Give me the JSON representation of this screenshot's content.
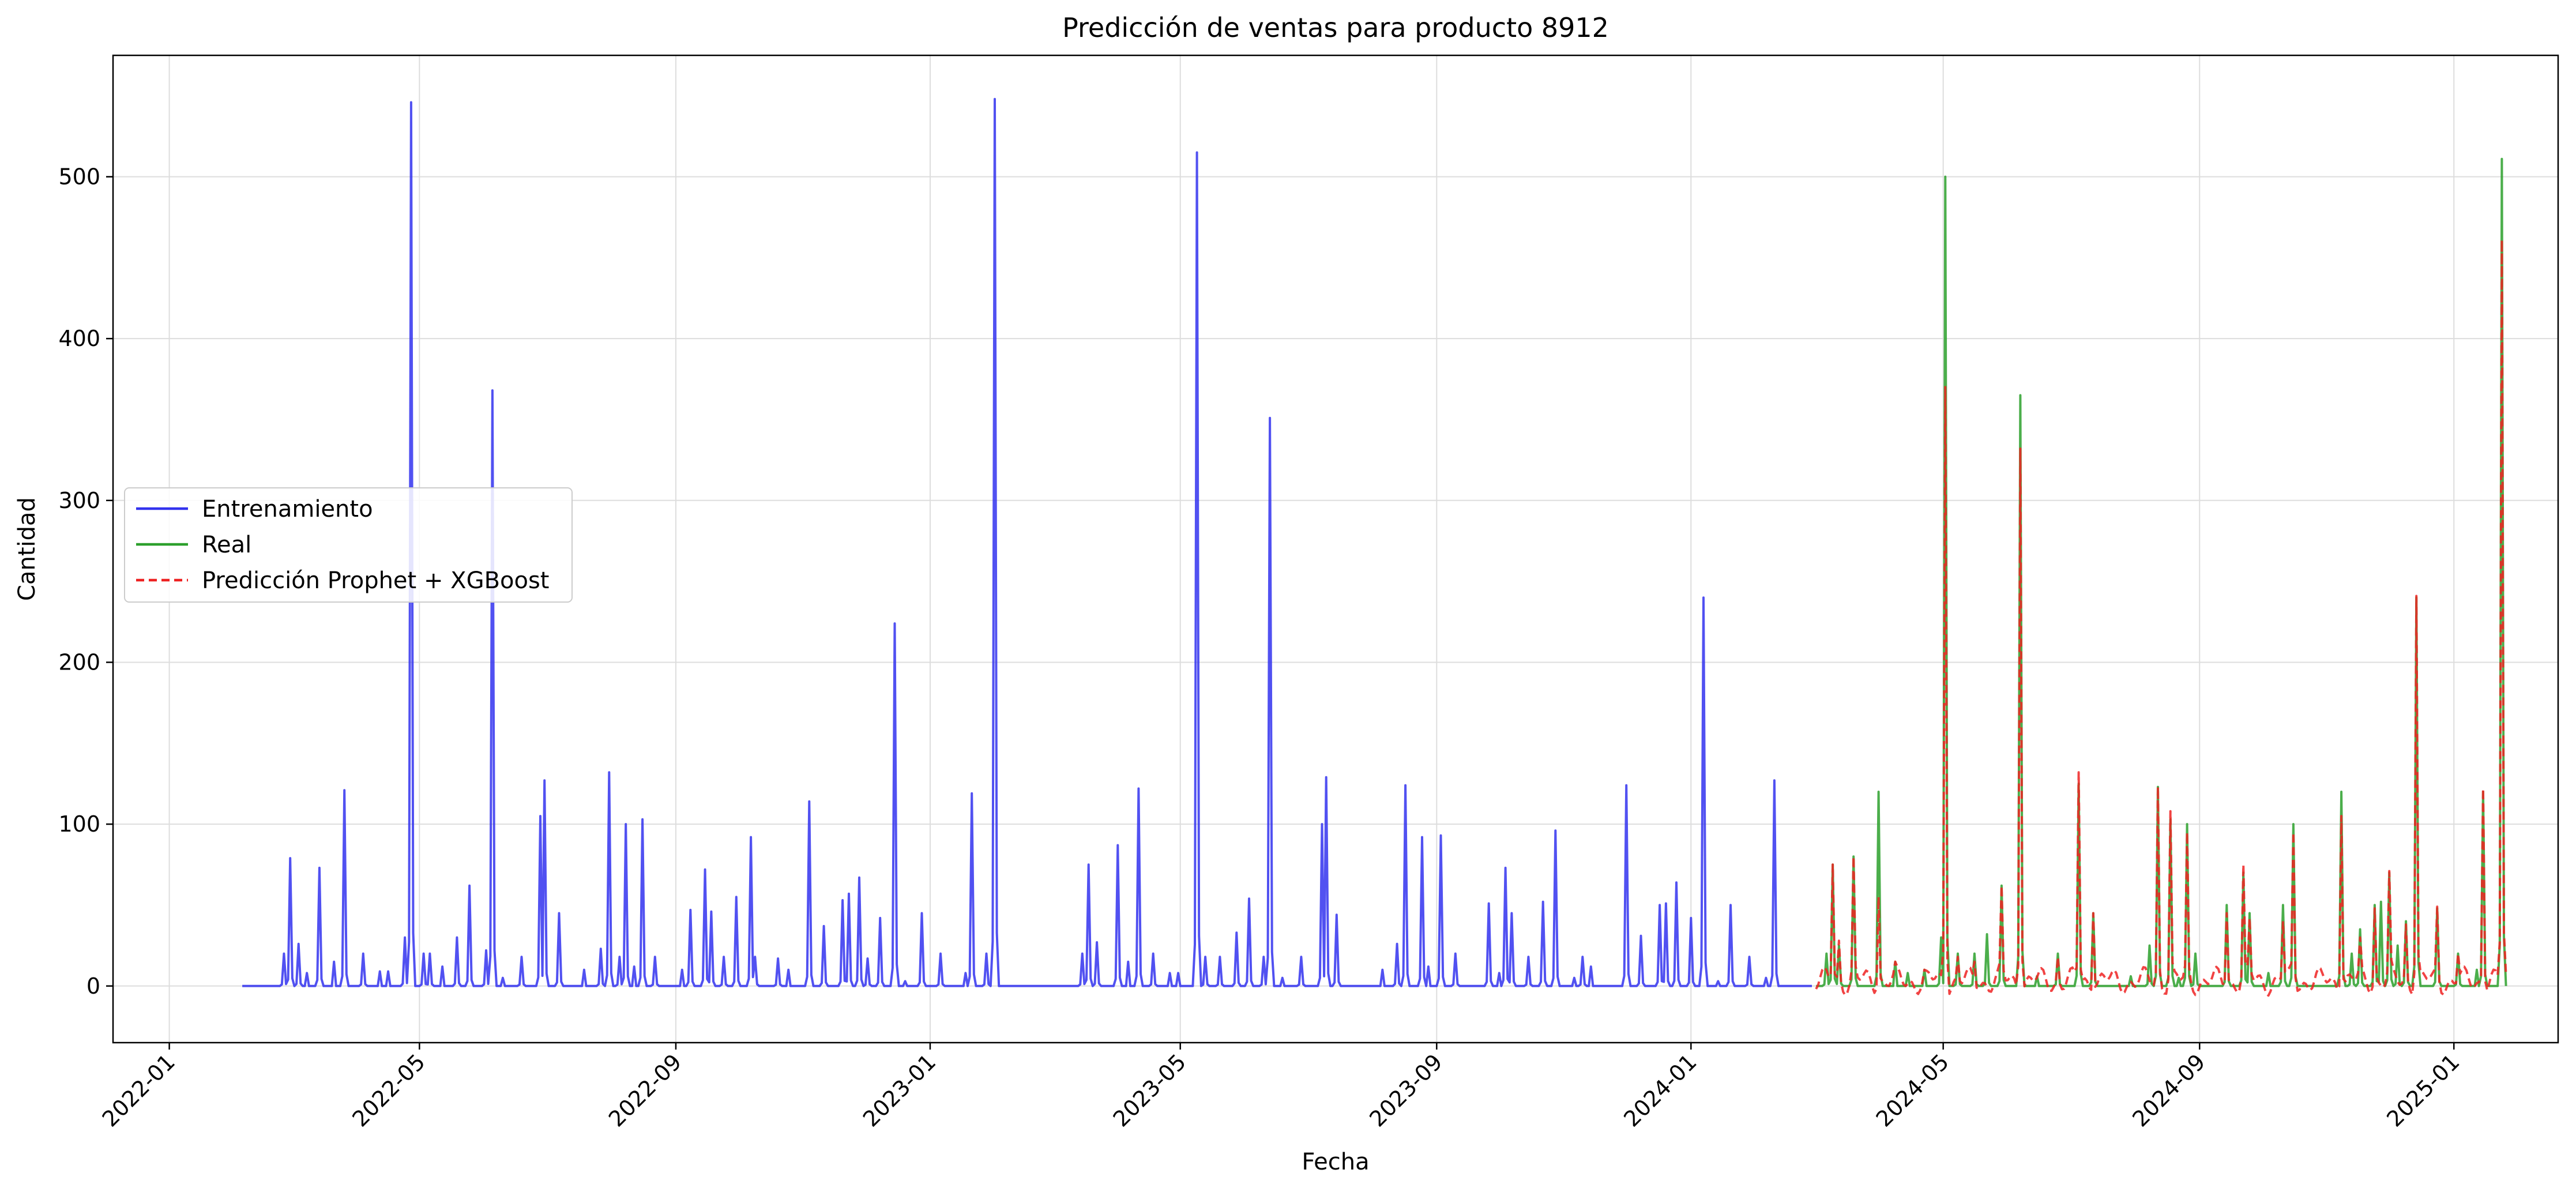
{
  "chart_data": {
    "type": "line",
    "title": "Predicción de ventas para producto 8912",
    "xlabel": "Fecha",
    "ylabel": "Cantidad",
    "grid": true,
    "legend_position": "center-left",
    "x_range": [
      "2021-12-05",
      "2025-02-20"
    ],
    "ylim": [
      -35,
      575
    ],
    "x_ticks": [
      "2022-01",
      "2022-05",
      "2022-09",
      "2023-01",
      "2023-05",
      "2023-09",
      "2024-01",
      "2024-05",
      "2024-09",
      "2025-01"
    ],
    "y_ticks": [
      0,
      100,
      200,
      300,
      400,
      500
    ],
    "series": [
      {
        "name": "Entrenamiento",
        "color": "#3333ee",
        "style": "solid",
        "start": "2022-02-05",
        "end": "2024-02-28",
        "points": [
          [
            "2022-02-25",
            20
          ],
          [
            "2022-02-28",
            79
          ],
          [
            "2022-03-04",
            26
          ],
          [
            "2022-03-08",
            8
          ],
          [
            "2022-03-14",
            73
          ],
          [
            "2022-03-21",
            15
          ],
          [
            "2022-03-26",
            121
          ],
          [
            "2022-04-04",
            20
          ],
          [
            "2022-04-12",
            9
          ],
          [
            "2022-04-16",
            9
          ],
          [
            "2022-04-24",
            30
          ],
          [
            "2022-04-27",
            546
          ],
          [
            "2022-05-03",
            20
          ],
          [
            "2022-05-06",
            20
          ],
          [
            "2022-05-12",
            12
          ],
          [
            "2022-05-19",
            30
          ],
          [
            "2022-05-25",
            62
          ],
          [
            "2022-06-02",
            22
          ],
          [
            "2022-06-05",
            368
          ],
          [
            "2022-06-10",
            5
          ],
          [
            "2022-06-19",
            18
          ],
          [
            "2022-06-28",
            105
          ],
          [
            "2022-06-30",
            127
          ],
          [
            "2022-07-07",
            45
          ],
          [
            "2022-07-19",
            10
          ],
          [
            "2022-07-27",
            23
          ],
          [
            "2022-07-31",
            132
          ],
          [
            "2022-08-05",
            18
          ],
          [
            "2022-08-08",
            100
          ],
          [
            "2022-08-12",
            12
          ],
          [
            "2022-08-16",
            103
          ],
          [
            "2022-08-22",
            18
          ],
          [
            "2022-09-04",
            10
          ],
          [
            "2022-09-08",
            47
          ],
          [
            "2022-09-15",
            72
          ],
          [
            "2022-09-18",
            46
          ],
          [
            "2022-09-24",
            18
          ],
          [
            "2022-09-30",
            55
          ],
          [
            "2022-10-07",
            92
          ],
          [
            "2022-10-09",
            18
          ],
          [
            "2022-10-20",
            17
          ],
          [
            "2022-10-25",
            10
          ],
          [
            "2022-11-04",
            114
          ],
          [
            "2022-11-11",
            37
          ],
          [
            "2022-11-20",
            53
          ],
          [
            "2022-11-23",
            57
          ],
          [
            "2022-11-28",
            67
          ],
          [
            "2022-12-02",
            17
          ],
          [
            "2022-12-08",
            42
          ],
          [
            "2022-12-15",
            224
          ],
          [
            "2022-12-20",
            3
          ],
          [
            "2022-12-28",
            45
          ],
          [
            "2023-01-06",
            20
          ],
          [
            "2023-01-18",
            8
          ],
          [
            "2023-01-21",
            119
          ],
          [
            "2023-01-28",
            20
          ],
          [
            "2023-02-01",
            548
          ],
          [
            "2023-03-15",
            20
          ],
          [
            "2023-03-18",
            75
          ],
          [
            "2023-03-22",
            27
          ],
          [
            "2023-04-01",
            87
          ],
          [
            "2023-04-06",
            15
          ],
          [
            "2023-04-11",
            122
          ],
          [
            "2023-04-18",
            20
          ],
          [
            "2023-04-26",
            8
          ],
          [
            "2023-04-30",
            8
          ],
          [
            "2023-05-09",
            515
          ],
          [
            "2023-05-13",
            18
          ],
          [
            "2023-05-20",
            18
          ],
          [
            "2023-05-28",
            33
          ],
          [
            "2023-06-03",
            54
          ],
          [
            "2023-06-10",
            18
          ],
          [
            "2023-06-13",
            351
          ],
          [
            "2023-06-19",
            5
          ],
          [
            "2023-06-28",
            18
          ],
          [
            "2023-07-08",
            100
          ],
          [
            "2023-07-10",
            129
          ],
          [
            "2023-07-15",
            44
          ],
          [
            "2023-08-06",
            10
          ],
          [
            "2023-08-13",
            26
          ],
          [
            "2023-08-17",
            124
          ],
          [
            "2023-08-25",
            92
          ],
          [
            "2023-08-28",
            12
          ],
          [
            "2023-09-03",
            93
          ],
          [
            "2023-09-10",
            20
          ],
          [
            "2023-09-26",
            51
          ],
          [
            "2023-10-01",
            8
          ],
          [
            "2023-10-04",
            73
          ],
          [
            "2023-10-07",
            45
          ],
          [
            "2023-10-15",
            18
          ],
          [
            "2023-10-22",
            52
          ],
          [
            "2023-10-28",
            96
          ],
          [
            "2023-11-06",
            5
          ],
          [
            "2023-11-10",
            18
          ],
          [
            "2023-11-14",
            12
          ],
          [
            "2023-12-01",
            124
          ],
          [
            "2023-12-08",
            31
          ],
          [
            "2023-12-17",
            50
          ],
          [
            "2023-12-20",
            51
          ],
          [
            "2023-12-25",
            64
          ],
          [
            "2024-01-01",
            42
          ],
          [
            "2024-01-07",
            240
          ],
          [
            "2024-01-14",
            3
          ],
          [
            "2024-01-20",
            50
          ],
          [
            "2024-01-29",
            18
          ],
          [
            "2024-02-06",
            5
          ],
          [
            "2024-02-10",
            127
          ]
        ]
      },
      {
        "name": "Real",
        "color": "#2ca02c",
        "style": "solid",
        "start": "2024-03-01",
        "end": "2025-01-26",
        "points": [
          [
            "2024-03-06",
            20
          ],
          [
            "2024-03-09",
            75
          ],
          [
            "2024-03-12",
            25
          ],
          [
            "2024-03-19",
            80
          ],
          [
            "2024-03-31",
            120
          ],
          [
            "2024-04-08",
            15
          ],
          [
            "2024-04-14",
            8
          ],
          [
            "2024-04-22",
            10
          ],
          [
            "2024-04-30",
            30
          ],
          [
            "2024-05-02",
            500
          ],
          [
            "2024-05-08",
            20
          ],
          [
            "2024-05-16",
            20
          ],
          [
            "2024-05-22",
            32
          ],
          [
            "2024-05-29",
            62
          ],
          [
            "2024-06-07",
            365
          ],
          [
            "2024-06-15",
            6
          ],
          [
            "2024-06-25",
            20
          ],
          [
            "2024-07-05",
            125
          ],
          [
            "2024-07-12",
            45
          ],
          [
            "2024-07-30",
            6
          ],
          [
            "2024-08-08",
            25
          ],
          [
            "2024-08-12",
            123
          ],
          [
            "2024-08-18",
            103
          ],
          [
            "2024-08-22",
            5
          ],
          [
            "2024-08-26",
            100
          ],
          [
            "2024-08-30",
            20
          ],
          [
            "2024-09-14",
            50
          ],
          [
            "2024-09-22",
            70
          ],
          [
            "2024-09-25",
            45
          ],
          [
            "2024-10-04",
            8
          ],
          [
            "2024-10-11",
            50
          ],
          [
            "2024-10-16",
            100
          ],
          [
            "2024-11-08",
            120
          ],
          [
            "2024-11-13",
            20
          ],
          [
            "2024-11-17",
            35
          ],
          [
            "2024-11-24",
            50
          ],
          [
            "2024-11-27",
            52
          ],
          [
            "2024-12-01",
            70
          ],
          [
            "2024-12-05",
            25
          ],
          [
            "2024-12-09",
            40
          ],
          [
            "2024-12-14",
            240
          ],
          [
            "2024-12-24",
            48
          ],
          [
            "2025-01-03",
            20
          ],
          [
            "2025-01-12",
            10
          ],
          [
            "2025-01-15",
            120
          ],
          [
            "2025-01-24",
            511
          ]
        ]
      },
      {
        "name": "Predicción Prophet + XGBoost",
        "color": "#ee2222",
        "style": "dashed",
        "start": "2024-03-01",
        "end": "2025-01-26",
        "points": [
          [
            "2024-03-09",
            75
          ],
          [
            "2024-03-12",
            28
          ],
          [
            "2024-03-19",
            80
          ],
          [
            "2024-03-31",
            55
          ],
          [
            "2024-04-08",
            15
          ],
          [
            "2024-04-22",
            10
          ],
          [
            "2024-05-02",
            370
          ],
          [
            "2024-05-08",
            18
          ],
          [
            "2024-05-16",
            15
          ],
          [
            "2024-05-29",
            62
          ],
          [
            "2024-06-07",
            332
          ],
          [
            "2024-06-25",
            18
          ],
          [
            "2024-07-05",
            132
          ],
          [
            "2024-07-12",
            45
          ],
          [
            "2024-08-12",
            123
          ],
          [
            "2024-08-18",
            108
          ],
          [
            "2024-08-26",
            95
          ],
          [
            "2024-09-14",
            45
          ],
          [
            "2024-09-22",
            75
          ],
          [
            "2024-09-25",
            42
          ],
          [
            "2024-10-11",
            40
          ],
          [
            "2024-10-16",
            95
          ],
          [
            "2024-11-08",
            105
          ],
          [
            "2024-11-17",
            30
          ],
          [
            "2024-11-24",
            48
          ],
          [
            "2024-12-01",
            71
          ],
          [
            "2024-12-09",
            38
          ],
          [
            "2024-12-14",
            241
          ],
          [
            "2024-12-24",
            49
          ],
          [
            "2025-01-03",
            20
          ],
          [
            "2025-01-15",
            122
          ],
          [
            "2025-01-24",
            461
          ]
        ]
      }
    ]
  }
}
